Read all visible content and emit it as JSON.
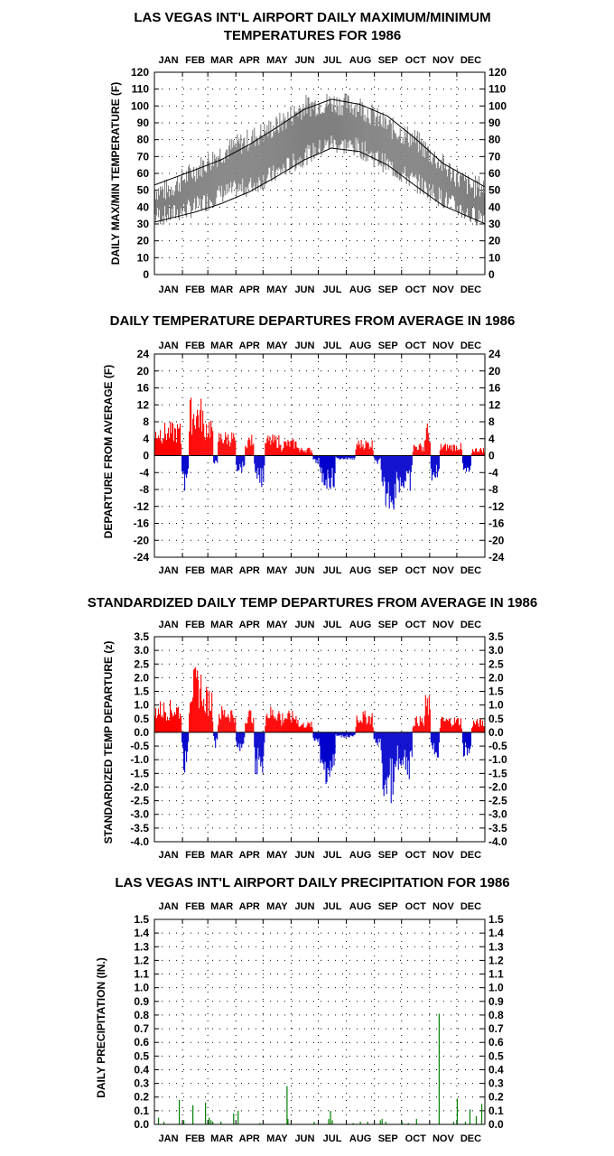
{
  "months": [
    "JAN",
    "FEB",
    "MAR",
    "APR",
    "MAY",
    "JUN",
    "JUL",
    "AUG",
    "SEP",
    "OCT",
    "NOV",
    "DEC"
  ],
  "colors": {
    "positive": "#ff0000",
    "negative": "#0000cc",
    "band": "#808080",
    "precip": "#008000",
    "axis": "#000000"
  },
  "chart_data": [
    {
      "type": "line",
      "title": "LAS VEGAS INT'L AIRPORT DAILY MAXIMUM/MINIMUM",
      "title2": "TEMPERATURES FOR 1986",
      "ylabel": "DAILY MAX/MIN TEMPERATURE (F)",
      "ylim": [
        0,
        120
      ],
      "yticks": [
        0,
        10,
        20,
        30,
        40,
        50,
        60,
        70,
        80,
        90,
        100,
        110,
        120
      ],
      "grid": true,
      "series": [
        {
          "role": "observed_range",
          "points_month_start": [
            [
              0,
              50,
              35
            ],
            [
              1,
              62,
              40
            ],
            [
              2,
              72,
              48
            ],
            [
              3,
              80,
              52
            ],
            [
              4,
              88,
              60
            ],
            [
              5,
              100,
              70
            ],
            [
              6,
              102,
              78
            ],
            [
              7,
              100,
              75
            ],
            [
              8,
              88,
              65
            ],
            [
              9,
              80,
              55
            ],
            [
              10,
              65,
              45
            ],
            [
              11,
              52,
              35
            ]
          ]
        },
        {
          "role": "normal_max",
          "values_month_mid": [
            56,
            62,
            68,
            77,
            87,
            98,
            104,
            101,
            94,
            81,
            66,
            57
          ]
        },
        {
          "role": "normal_min",
          "values_month_mid": [
            33,
            37,
            42,
            49,
            58,
            68,
            75,
            73,
            65,
            53,
            41,
            34
          ]
        }
      ]
    },
    {
      "type": "bar",
      "title": "DAILY TEMPERATURE DEPARTURES FROM AVERAGE IN 1986",
      "ylabel": "DEPARTURE FROM AVERAGE (F)",
      "ylim": [
        -24,
        24
      ],
      "yticks": [
        -24,
        -20,
        -16,
        -12,
        -8,
        -4,
        0,
        4,
        8,
        12,
        16,
        20,
        24
      ],
      "grid": true,
      "segments": [
        [
          1,
          30,
          8
        ],
        [
          31,
          38,
          -9
        ],
        [
          39,
          55,
          14
        ],
        [
          56,
          65,
          10
        ],
        [
          66,
          70,
          -3
        ],
        [
          71,
          90,
          6
        ],
        [
          91,
          100,
          -4
        ],
        [
          101,
          110,
          5
        ],
        [
          111,
          122,
          -8
        ],
        [
          123,
          140,
          5
        ],
        [
          141,
          160,
          4
        ],
        [
          161,
          175,
          2
        ],
        [
          176,
          182,
          -2
        ],
        [
          183,
          200,
          -8
        ],
        [
          201,
          222,
          -1
        ],
        [
          223,
          242,
          4
        ],
        [
          243,
          250,
          -2
        ],
        [
          251,
          268,
          -13
        ],
        [
          269,
          285,
          -9
        ],
        [
          286,
          298,
          3
        ],
        [
          299,
          305,
          8
        ],
        [
          306,
          315,
          -6
        ],
        [
          316,
          340,
          3
        ],
        [
          341,
          350,
          -4
        ],
        [
          351,
          365,
          2
        ]
      ]
    },
    {
      "type": "bar",
      "title": "STANDARDIZED DAILY TEMP DEPARTURES FROM AVERAGE IN 1986",
      "ylabel": "STANDARDIZED TEMP DEPARTURE (z)",
      "ylim": [
        -4.0,
        3.5
      ],
      "yticks": [
        "-4.0",
        "-3.5",
        "-3.0",
        "-2.5",
        "-2.0",
        "-1.5",
        "-1.0",
        "-0.5",
        "0.0",
        "0.5",
        "1.0",
        "1.5",
        "2.0",
        "2.5",
        "3.0",
        "3.5"
      ],
      "grid": true,
      "segments": [
        [
          1,
          30,
          1.2
        ],
        [
          31,
          38,
          -1.5
        ],
        [
          39,
          55,
          2.4
        ],
        [
          56,
          65,
          1.7
        ],
        [
          66,
          70,
          -0.6
        ],
        [
          71,
          90,
          1.0
        ],
        [
          91,
          100,
          -0.7
        ],
        [
          101,
          110,
          0.9
        ],
        [
          111,
          122,
          -1.6
        ],
        [
          123,
          140,
          1.0
        ],
        [
          141,
          160,
          0.8
        ],
        [
          161,
          175,
          0.4
        ],
        [
          176,
          182,
          -0.5
        ],
        [
          183,
          200,
          -1.9
        ],
        [
          201,
          222,
          -0.2
        ],
        [
          223,
          242,
          0.8
        ],
        [
          243,
          250,
          -0.5
        ],
        [
          251,
          268,
          -2.6
        ],
        [
          269,
          285,
          -1.8
        ],
        [
          286,
          298,
          0.6
        ],
        [
          299,
          305,
          1.4
        ],
        [
          306,
          315,
          -1.0
        ],
        [
          316,
          340,
          0.6
        ],
        [
          341,
          350,
          -1.0
        ],
        [
          351,
          365,
          0.5
        ]
      ]
    },
    {
      "type": "bar",
      "title": "LAS VEGAS INT'L AIRPORT DAILY PRECIPITATION FOR 1986",
      "ylabel": "DAILY PRECIPITATION (IN.)",
      "ylim": [
        0,
        1.5
      ],
      "yticks": [
        "0.0",
        "0.1",
        "0.2",
        "0.3",
        "0.4",
        "0.5",
        "0.6",
        "0.7",
        "0.8",
        "0.9",
        "1.0",
        "1.1",
        "1.2",
        "1.3",
        "1.4",
        "1.5"
      ],
      "grid": true,
      "days": [
        [
          5,
          0.05
        ],
        [
          11,
          0.02
        ],
        [
          28,
          0.18
        ],
        [
          33,
          0.03
        ],
        [
          43,
          0.14
        ],
        [
          57,
          0.16
        ],
        [
          61,
          0.05
        ],
        [
          63,
          0.03
        ],
        [
          65,
          0.02
        ],
        [
          74,
          0.02
        ],
        [
          88,
          0.08
        ],
        [
          93,
          0.1
        ],
        [
          117,
          0.01
        ],
        [
          147,
          0.28
        ],
        [
          148,
          0.04
        ],
        [
          177,
          0.02
        ],
        [
          193,
          0.04
        ],
        [
          195,
          0.1
        ],
        [
          197,
          0.03
        ],
        [
          220,
          0.01
        ],
        [
          228,
          0.02
        ],
        [
          236,
          0.02
        ],
        [
          250,
          0.03
        ],
        [
          252,
          0.04
        ],
        [
          256,
          0.02
        ],
        [
          274,
          0.02
        ],
        [
          281,
          0.01
        ],
        [
          290,
          0.04
        ],
        [
          315,
          0.81
        ],
        [
          331,
          0.02
        ],
        [
          335,
          0.19
        ],
        [
          344,
          0.02
        ],
        [
          349,
          0.11
        ],
        [
          356,
          0.06
        ],
        [
          362,
          0.15
        ]
      ]
    }
  ]
}
